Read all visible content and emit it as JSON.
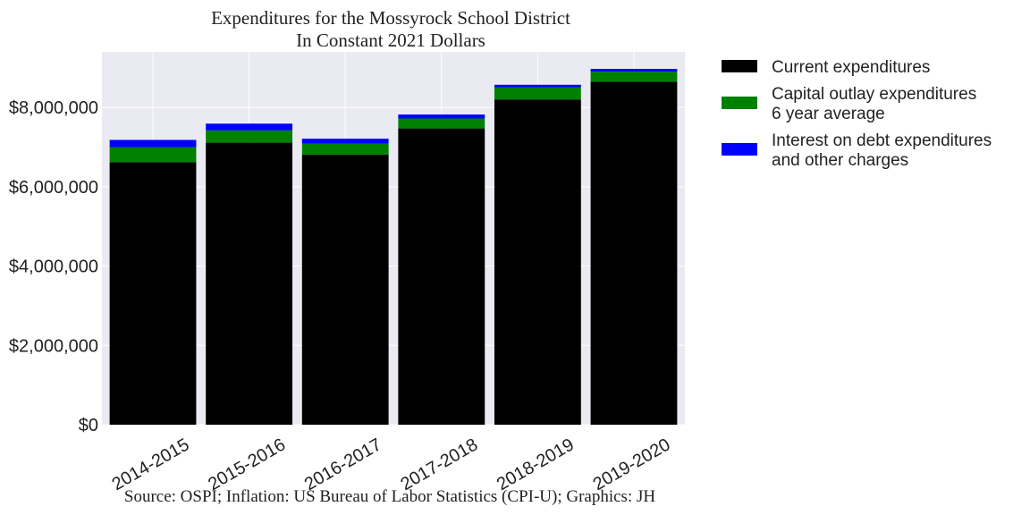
{
  "chart_data": {
    "type": "bar",
    "stacked": true,
    "title_lines": [
      "Expenditures for the Mossyrock School District",
      "In Constant 2021 Dollars"
    ],
    "source": "Source: OSPI; Inflation: US Bureau of Labor Statistics (CPI-U); Graphics: JH",
    "categories": [
      "2014-2015",
      "2015-2016",
      "2016-2017",
      "2017-2018",
      "2018-2019",
      "2019-2020"
    ],
    "series": [
      {
        "name_lines": [
          "Current expenditures"
        ],
        "color": "#000000",
        "values": [
          6620000,
          7110000,
          6810000,
          7470000,
          8200000,
          8650000
        ]
      },
      {
        "name_lines": [
          "Capital outlay expenditures",
          "6 year average"
        ],
        "color": "#008000",
        "values": [
          380000,
          310000,
          280000,
          250000,
          310000,
          250000
        ]
      },
      {
        "name_lines": [
          "Interest on debt expenditures",
          "and other charges"
        ],
        "color": "#0000ff",
        "values": [
          180000,
          170000,
          120000,
          100000,
          60000,
          70000
        ]
      }
    ],
    "yticks": [
      0,
      2000000,
      4000000,
      6000000,
      8000000
    ],
    "ytick_labels": [
      "$0",
      "$2,000,000",
      "$4,000,000",
      "$6,000,000",
      "$8,000,000"
    ],
    "ylim": [
      0,
      9400000
    ],
    "grid": true,
    "legend_position": "outside-right-top",
    "background": "#eaeaf2"
  }
}
